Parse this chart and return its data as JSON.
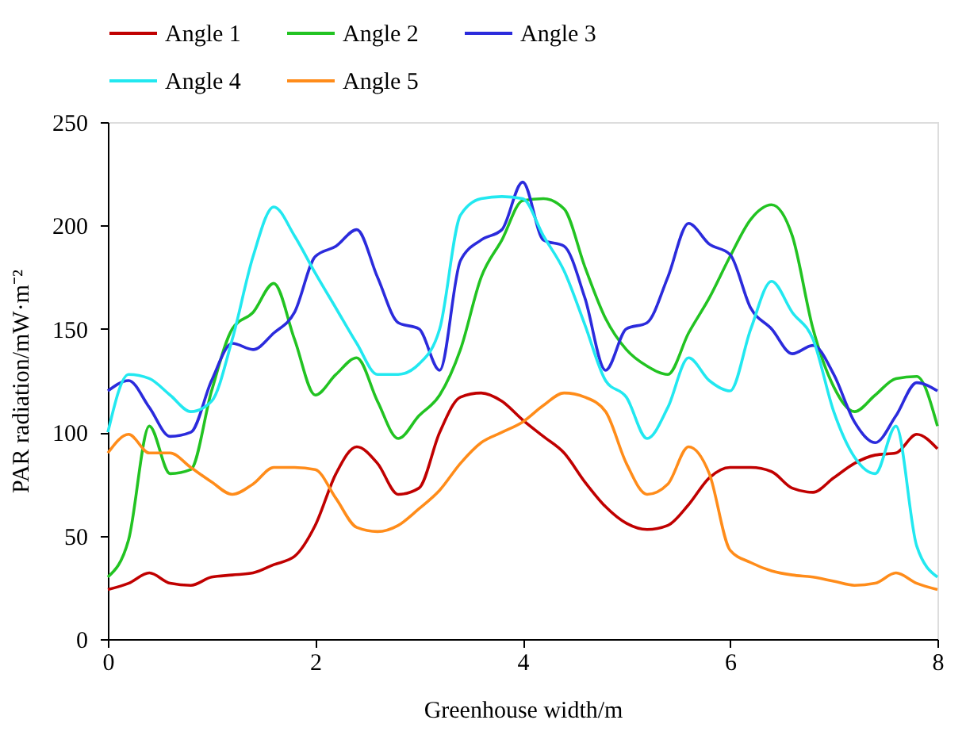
{
  "chart_data": {
    "type": "line",
    "xlabel": "Greenhouse width/m",
    "ylabel": "PAR radiation/mW·m⁻²",
    "x": [
      0,
      0.2,
      0.4,
      0.6,
      0.8,
      1.0,
      1.2,
      1.4,
      1.6,
      1.8,
      2.0,
      2.2,
      2.4,
      2.6,
      2.8,
      3.0,
      3.2,
      3.4,
      3.6,
      3.8,
      4.0,
      4.2,
      4.4,
      4.6,
      4.8,
      5.0,
      5.2,
      5.4,
      5.6,
      5.8,
      6.0,
      6.2,
      6.4,
      6.6,
      6.8,
      7.0,
      7.2,
      7.4,
      7.6,
      7.8,
      8.0
    ],
    "series": [
      {
        "name": "Angle 1",
        "color": "#c00000",
        "values": [
          24,
          27,
          32,
          27,
          26,
          30,
          31,
          32,
          36,
          40,
          55,
          80,
          93,
          85,
          70,
          73,
          100,
          117,
          119,
          115,
          106,
          98,
          90,
          76,
          64,
          56,
          53,
          55,
          65,
          78,
          83,
          83,
          81,
          73,
          71,
          78,
          85,
          89,
          90,
          99,
          92
        ]
      },
      {
        "name": "Angle 2",
        "color": "#22c322",
        "values": [
          30,
          48,
          103,
          80,
          82,
          120,
          150,
          158,
          172,
          145,
          118,
          128,
          136,
          115,
          97,
          108,
          118,
          140,
          175,
          193,
          212,
          213,
          208,
          180,
          155,
          140,
          132,
          128,
          148,
          165,
          185,
          203,
          210,
          195,
          150,
          122,
          110,
          118,
          126,
          127,
          103
        ]
      },
      {
        "name": "Angle 3",
        "color": "#2b2bdc",
        "values": [
          120,
          125,
          112,
          98,
          100,
          125,
          143,
          140,
          148,
          158,
          185,
          190,
          198,
          175,
          153,
          150,
          130,
          183,
          193,
          198,
          221,
          193,
          190,
          165,
          130,
          150,
          153,
          175,
          201,
          191,
          186,
          160,
          150,
          138,
          142,
          128,
          105,
          95,
          108,
          124,
          120
        ]
      },
      {
        "name": "Angle 4",
        "color": "#22e8f0",
        "values": [
          100,
          128,
          126,
          118,
          110,
          115,
          145,
          185,
          209,
          195,
          177,
          160,
          143,
          128,
          128,
          133,
          150,
          205,
          213,
          214,
          213,
          195,
          178,
          152,
          125,
          117,
          97,
          112,
          136,
          125,
          120,
          150,
          173,
          158,
          145,
          110,
          88,
          80,
          103,
          45,
          30
        ]
      },
      {
        "name": "Angle 5",
        "color": "#ff8c1a",
        "values": [
          90,
          99,
          90,
          90,
          83,
          76,
          70,
          75,
          83,
          83,
          82,
          68,
          54,
          52,
          55,
          63,
          72,
          85,
          95,
          100,
          105,
          113,
          119,
          117,
          110,
          85,
          70,
          75,
          93,
          80,
          43,
          37,
          33,
          31,
          30,
          28,
          26,
          27,
          32,
          27,
          24
        ]
      }
    ],
    "xlim": [
      0,
      8
    ],
    "xticks": [
      0,
      2,
      4,
      6,
      8
    ],
    "ylim": [
      0,
      250
    ],
    "yticks": [
      0,
      50,
      100,
      150,
      200,
      250
    ],
    "grid": false,
    "legend": "top",
    "marker": "none",
    "line_style": "solid"
  }
}
